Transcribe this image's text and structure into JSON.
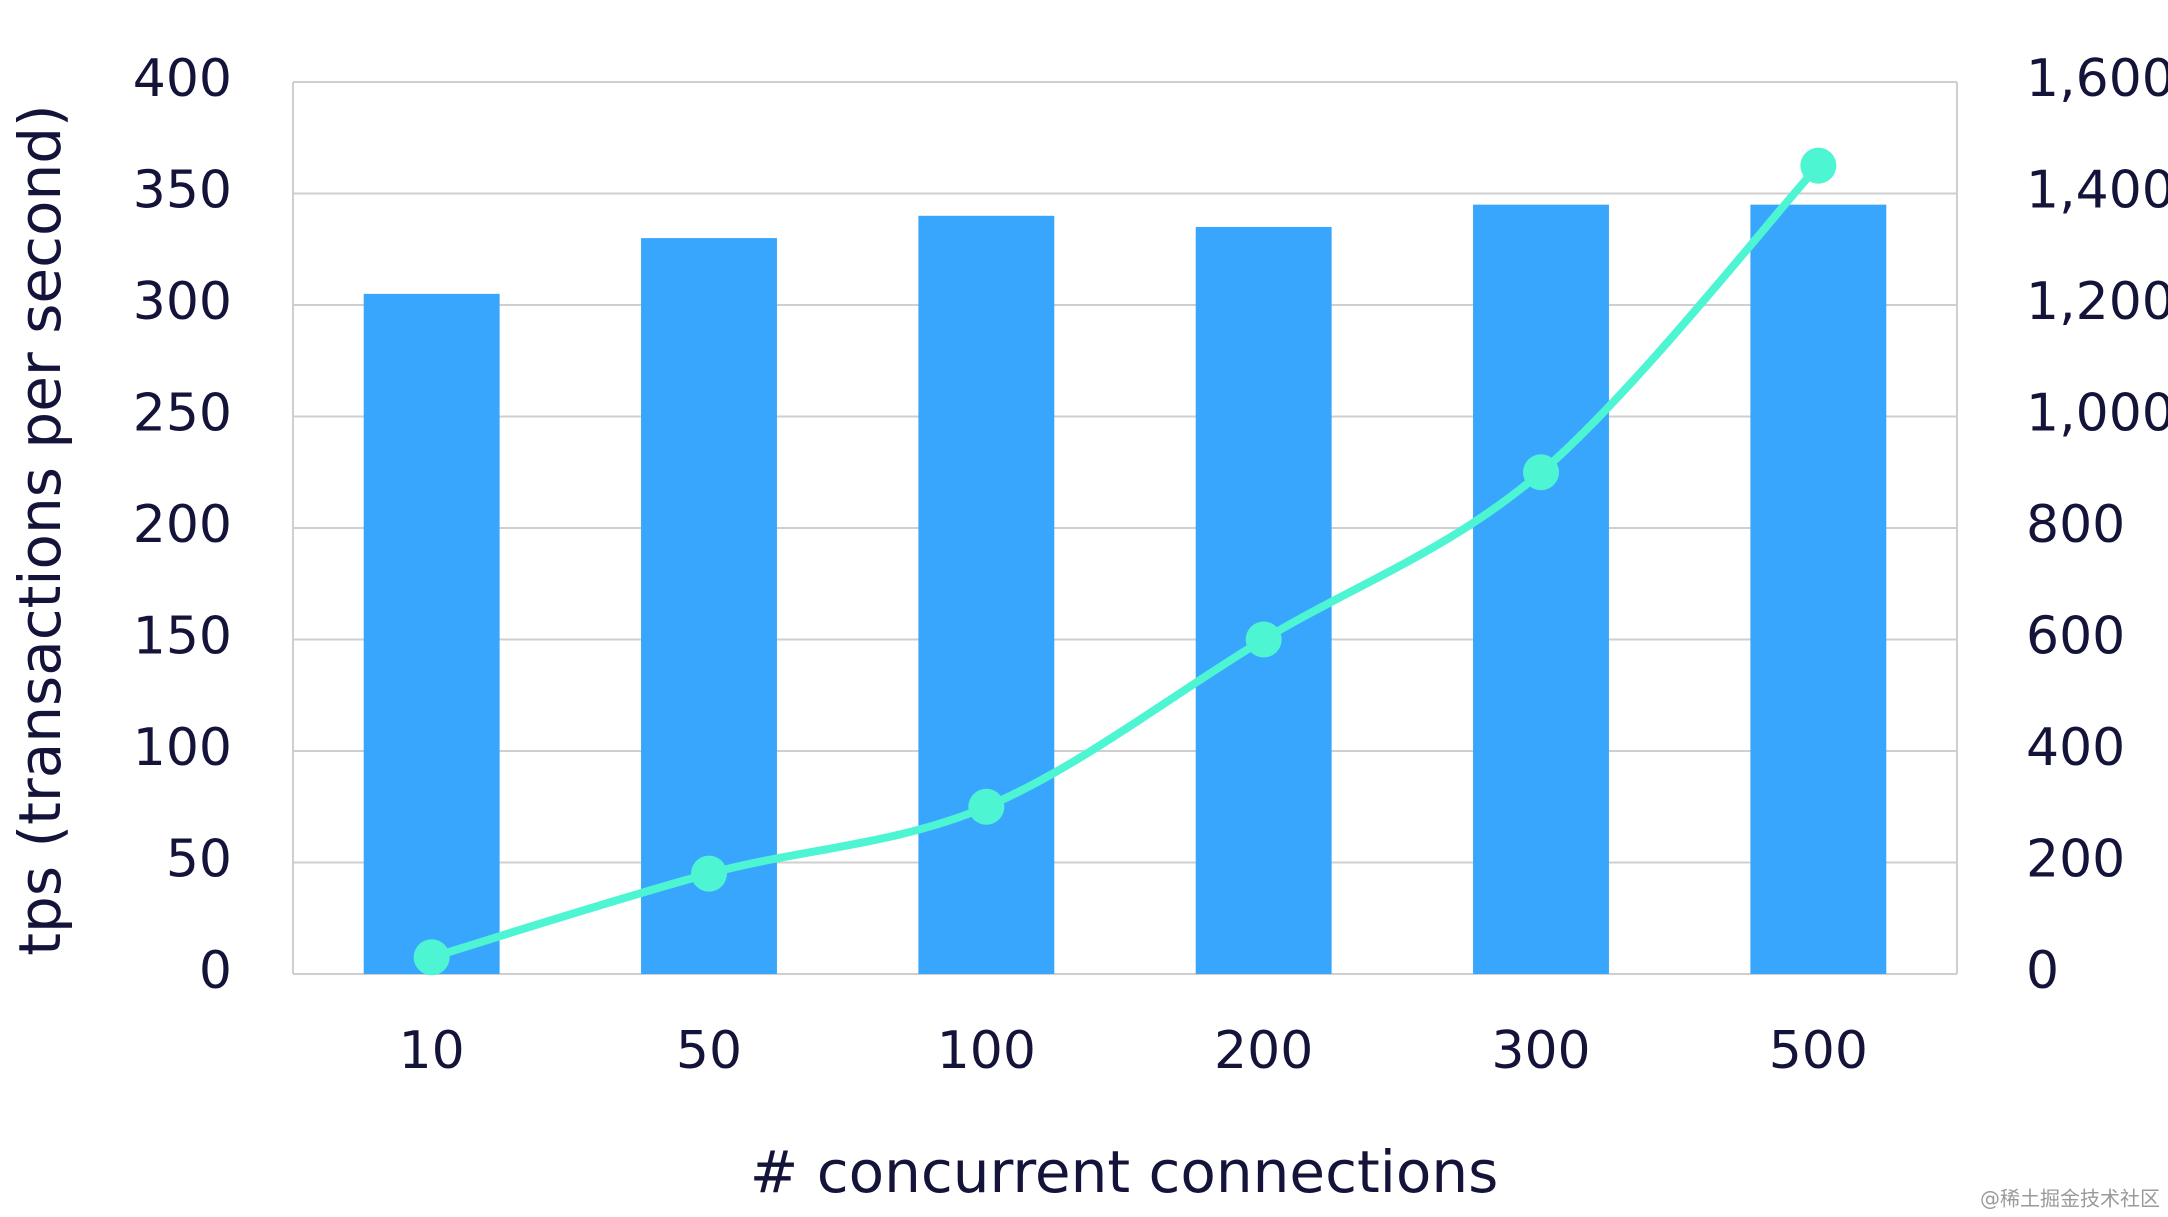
{
  "chart_data": {
    "type": "combo",
    "categories": [
      "10",
      "50",
      "100",
      "200",
      "300",
      "500"
    ],
    "series": [
      {
        "type": "bar",
        "color": "#38a6fd",
        "values": [
          305,
          330,
          340,
          335,
          345,
          345
        ]
      },
      {
        "type": "line",
        "color": "#4ef5d3",
        "axis": "y2",
        "values": [
          30,
          180,
          300,
          600,
          900,
          1450
        ]
      }
    ],
    "ylim": [
      0,
      400
    ],
    "yticks": [
      0,
      50,
      100,
      150,
      200,
      250,
      300,
      350,
      400
    ],
    "y2lim": [
      0,
      1600
    ],
    "y2ticks": [
      0,
      200,
      400,
      600,
      800,
      {
        "value": 1000,
        "label": "1,000"
      },
      {
        "value": 1200,
        "label": "1,200"
      },
      {
        "value": 1400,
        "label": "1,400"
      },
      {
        "value": 1600,
        "label": "1,600"
      }
    ],
    "ylabel": "tps (transactions per second)",
    "xlabel": "# concurrent connections",
    "watermark": "@稀土掘金技术社区",
    "grid": true
  }
}
